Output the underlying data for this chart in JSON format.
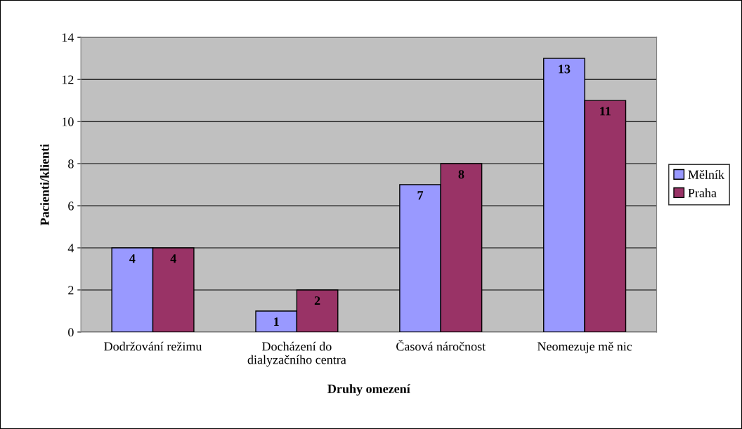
{
  "chart_data": {
    "type": "bar",
    "xlabel": "Druhy omezení",
    "ylabel": "Pacienti/klienti",
    "categories": [
      "Dodržování režimu",
      "Docházení do\ndialyzačního centra",
      "Časová náročnost",
      "Neomezuje mě nic"
    ],
    "series": [
      {
        "name": "Mělník",
        "color": "#9999ff",
        "values": [
          4,
          1,
          7,
          13
        ]
      },
      {
        "name": "Praha",
        "color": "#993366",
        "values": [
          4,
          2,
          8,
          11
        ]
      }
    ],
    "ylim": [
      0,
      14
    ],
    "yticks": [
      0,
      2,
      4,
      6,
      8,
      10,
      12,
      14
    ],
    "grid": "y",
    "legend": "right",
    "data_labels": true
  }
}
